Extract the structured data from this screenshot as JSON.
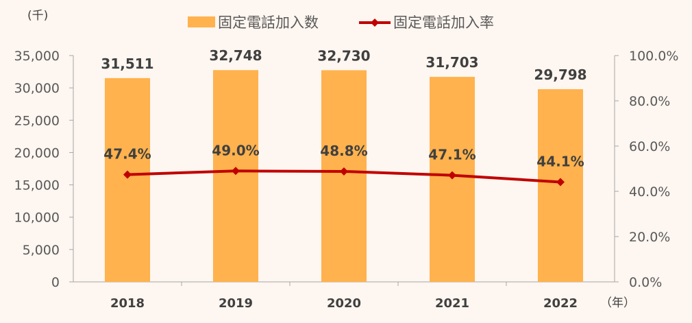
{
  "chart_data": {
    "type": "bar",
    "categories": [
      "2018",
      "2019",
      "2020",
      "2021",
      "2022"
    ],
    "series": [
      {
        "name": "固定電話加入数",
        "type": "bar",
        "axis": "left",
        "values": [
          31511,
          32748,
          32730,
          31703,
          29798
        ],
        "labels": [
          "31,511",
          "32,748",
          "32,730",
          "31,703",
          "29,798"
        ],
        "color": "#FFB24D"
      },
      {
        "name": "固定電話加入率",
        "type": "line",
        "axis": "right",
        "values": [
          47.4,
          49.0,
          48.8,
          47.1,
          44.1
        ],
        "labels": [
          "47.4%",
          "49.0%",
          "48.8%",
          "47.1%",
          "44.1%"
        ],
        "color": "#C00000"
      }
    ],
    "y_left": {
      "unit_label": "(千)",
      "ylim": [
        0,
        35000
      ],
      "ticks": [
        "0",
        "5,000",
        "10,000",
        "15,000",
        "20,000",
        "25,000",
        "30,000",
        "35,000"
      ]
    },
    "y_right": {
      "ylim": [
        0,
        100
      ],
      "ticks": [
        "0.0%",
        "20.0%",
        "40.0%",
        "60.0%",
        "80.0%",
        "100.0%"
      ]
    },
    "x_unit_label": "（年）",
    "legend_position": "top"
  }
}
